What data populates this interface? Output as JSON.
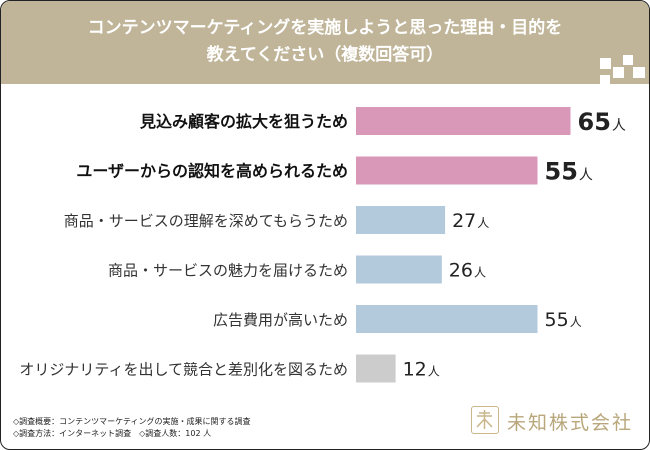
{
  "header": {
    "title_line1": "コンテンツマーケティングを実施しようと思った理由・目的を",
    "title_line2": "教えてください（複数回答可）"
  },
  "chart_data": {
    "type": "bar",
    "orientation": "horizontal",
    "unit": "人",
    "categories": [
      "見込み顧客の拡大を狙うため",
      "ユーザーからの認知を高められるため",
      "商品・サービスの理解を深めてもらうため",
      "商品・サービスの魅力を届けるため",
      "広告費用が高いため",
      "オリジナリティを出して競合と差別化を図るため"
    ],
    "values": [
      65,
      55,
      27,
      26,
      55,
      12
    ],
    "value_labels": [
      "65",
      "55",
      "27",
      "26",
      "55",
      "12"
    ],
    "highlight": [
      true,
      true,
      false,
      false,
      false,
      false
    ],
    "colors": {
      "highlight": "#d998b8",
      "normal": "#b3c9dc",
      "muted": "#cccccc",
      "header": "#c0b599"
    }
  },
  "footer": {
    "line1": "◇調査概要：コンテンツマーケティングの実施・成果に関する調査",
    "line2": "◇調査方法：インターネット調査　◇調査人数：102 人"
  },
  "logo": {
    "text": "未知株式会社",
    "mark": "未"
  }
}
